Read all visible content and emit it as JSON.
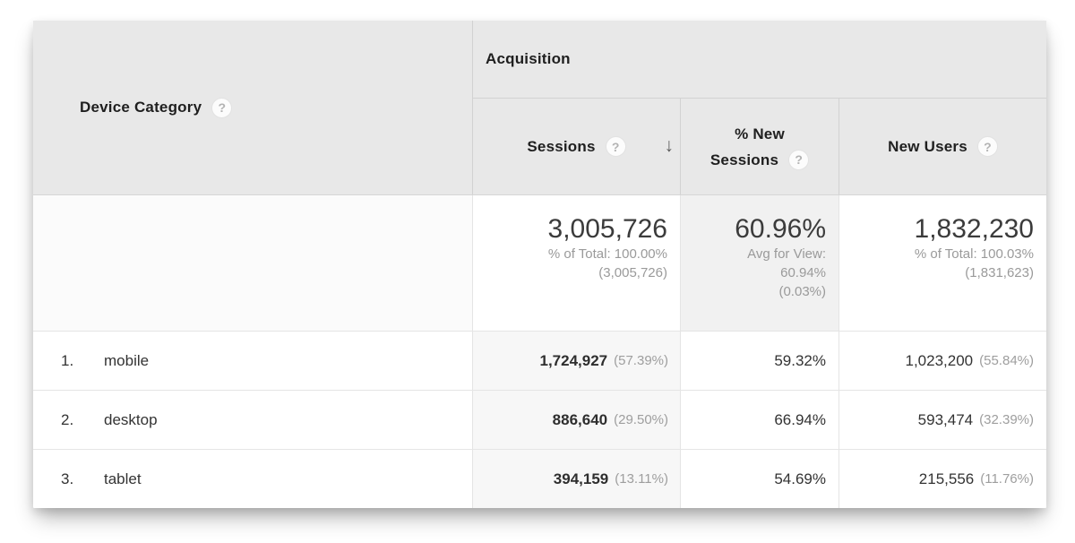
{
  "colors": {
    "header_bg": "#e8e8e8",
    "sorted_column_bg": "#f7f7f7",
    "summary_avg_cell_bg": "#f1f1f1",
    "header_divider": "#d2d2d2",
    "body_divider": "#e4e4e4",
    "text_dark": "#333333",
    "text_muted": "#9a9a9a"
  },
  "icons": {
    "help": "?",
    "sort_desc": "↓"
  },
  "table": {
    "device_column": {
      "label": "Device Category"
    },
    "group_header": "Acquisition",
    "columns": [
      {
        "label": "Sessions",
        "sorted": "desc"
      },
      {
        "label_line1": "% New",
        "label_line2": "Sessions"
      },
      {
        "label": "New Users"
      }
    ],
    "summary": {
      "sessions": {
        "value": "3,005,726",
        "sub1": "% of Total: 100.00%",
        "sub2": "(3,005,726)"
      },
      "pct_new_sessions": {
        "value": "60.96%",
        "sub1": "Avg for View:",
        "sub2": "60.94%",
        "sub3": "(0.03%)"
      },
      "new_users": {
        "value": "1,832,230",
        "sub1": "% of Total: 100.03%",
        "sub2": "(1,831,623)"
      }
    },
    "rows": [
      {
        "rank": "1.",
        "device": "mobile",
        "sessions": "1,724,927",
        "sessions_pct": "(57.39%)",
        "pct_new_sessions": "59.32%",
        "new_users": "1,023,200",
        "new_users_pct": "(55.84%)"
      },
      {
        "rank": "2.",
        "device": "desktop",
        "sessions": "886,640",
        "sessions_pct": "(29.50%)",
        "pct_new_sessions": "66.94%",
        "new_users": "593,474",
        "new_users_pct": "(32.39%)"
      },
      {
        "rank": "3.",
        "device": "tablet",
        "sessions": "394,159",
        "sessions_pct": "(13.11%)",
        "pct_new_sessions": "54.69%",
        "new_users": "215,556",
        "new_users_pct": "(11.76%)"
      }
    ]
  }
}
